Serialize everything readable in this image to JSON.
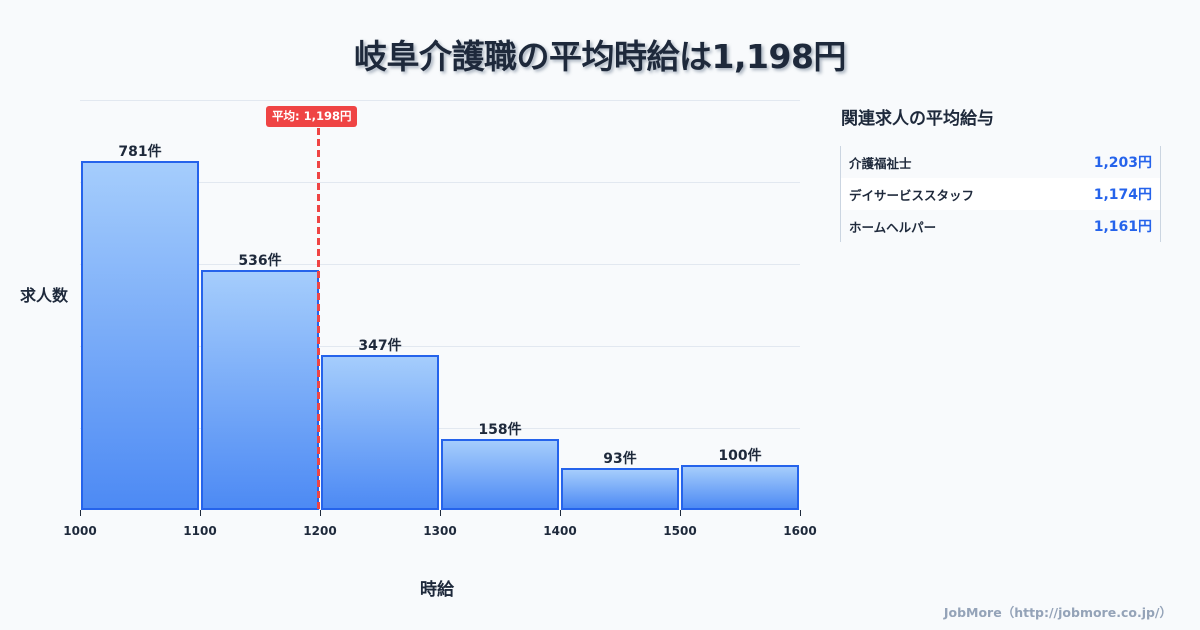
{
  "title": "岐阜介護職の平均時給は1,198円",
  "chart_data": {
    "type": "bar",
    "title": "岐阜介護職の平均時給は1,198円",
    "xlabel": "時給",
    "ylabel": "求人数",
    "categories": [
      "1000-1100",
      "1100-1200",
      "1200-1300",
      "1300-1400",
      "1400-1500",
      "1500-1600"
    ],
    "bins": [
      [
        1000,
        1100
      ],
      [
        1100,
        1200
      ],
      [
        1200,
        1300
      ],
      [
        1300,
        1400
      ],
      [
        1400,
        1500
      ],
      [
        1500,
        1600
      ]
    ],
    "values": [
      781,
      536,
      347,
      158,
      93,
      100
    ],
    "value_labels": [
      "781件",
      "536件",
      "347件",
      "158件",
      "93件",
      "100件"
    ],
    "x_ticks": [
      "1000",
      "1100",
      "1200",
      "1300",
      "1400",
      "1500",
      "1600"
    ],
    "xlim": [
      1000,
      1600
    ],
    "grid": true,
    "annotations": [
      {
        "type": "vline",
        "x": 1198,
        "label": "平均: 1,198円",
        "color": "#ef4444",
        "style": "dashed"
      }
    ],
    "colors": {
      "bar_fill_top": "#a5cdfc",
      "bar_fill_bottom": "#4d8af4",
      "bar_border": "#2563eb"
    }
  },
  "average_badge": "平均: 1,198円",
  "axis": {
    "ylabel": "求人数",
    "xlabel": "時給"
  },
  "side_panel": {
    "title": "関連求人の平均給与",
    "rows": [
      {
        "name": "介護福祉士",
        "value": "1,203円"
      },
      {
        "name": "デイサービススタッフ",
        "value": "1,174円"
      },
      {
        "name": "ホームヘルパー",
        "value": "1,161円"
      }
    ]
  },
  "footer": "JobMore（http://jobmore.co.jp/）"
}
